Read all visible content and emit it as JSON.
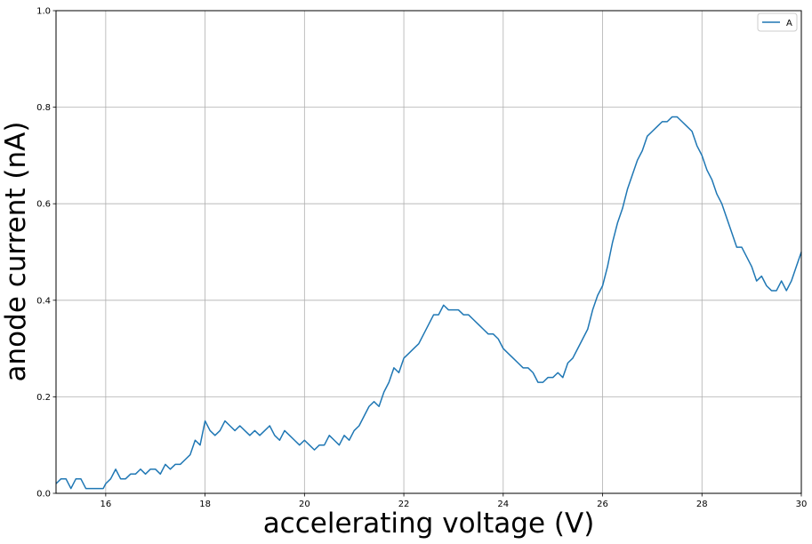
{
  "chart_data": {
    "type": "line",
    "title": "",
    "xlabel": "accelerating voltage (V)",
    "ylabel": "anode current (nA)",
    "xlim": [
      15,
      30
    ],
    "ylim": [
      0.0,
      1.0
    ],
    "x_ticks": [
      16,
      18,
      20,
      22,
      24,
      26,
      28,
      30
    ],
    "x_tick_labels": [
      "16",
      "18",
      "20",
      "22",
      "24",
      "26",
      "28",
      "30"
    ],
    "y_ticks": [
      0.0,
      0.2,
      0.4,
      0.6,
      0.8,
      1.0
    ],
    "y_tick_labels": [
      "0.0",
      "0.2",
      "0.4",
      "0.6",
      "0.8",
      "1.0"
    ],
    "grid": true,
    "legend_position": "top-right",
    "series": [
      {
        "name": "A",
        "color": "#1f77b4",
        "points": [
          [
            15.0,
            0.02
          ],
          [
            15.1,
            0.03
          ],
          [
            15.2,
            0.03
          ],
          [
            15.3,
            0.01
          ],
          [
            15.4,
            0.03
          ],
          [
            15.5,
            0.03
          ],
          [
            15.6,
            0.01
          ],
          [
            15.8,
            0.01
          ],
          [
            15.95,
            0.01
          ],
          [
            16.0,
            0.02
          ],
          [
            16.1,
            0.03
          ],
          [
            16.2,
            0.05
          ],
          [
            16.3,
            0.03
          ],
          [
            16.4,
            0.03
          ],
          [
            16.5,
            0.04
          ],
          [
            16.6,
            0.04
          ],
          [
            16.7,
            0.05
          ],
          [
            16.8,
            0.04
          ],
          [
            16.9,
            0.05
          ],
          [
            17.0,
            0.05
          ],
          [
            17.1,
            0.04
          ],
          [
            17.2,
            0.06
          ],
          [
            17.3,
            0.05
          ],
          [
            17.4,
            0.06
          ],
          [
            17.5,
            0.06
          ],
          [
            17.6,
            0.07
          ],
          [
            17.7,
            0.08
          ],
          [
            17.8,
            0.11
          ],
          [
            17.9,
            0.1
          ],
          [
            18.0,
            0.15
          ],
          [
            18.1,
            0.13
          ],
          [
            18.2,
            0.12
          ],
          [
            18.3,
            0.13
          ],
          [
            18.4,
            0.15
          ],
          [
            18.5,
            0.14
          ],
          [
            18.6,
            0.13
          ],
          [
            18.7,
            0.14
          ],
          [
            18.8,
            0.13
          ],
          [
            18.9,
            0.12
          ],
          [
            19.0,
            0.13
          ],
          [
            19.1,
            0.12
          ],
          [
            19.2,
            0.13
          ],
          [
            19.3,
            0.14
          ],
          [
            19.4,
            0.12
          ],
          [
            19.5,
            0.11
          ],
          [
            19.6,
            0.13
          ],
          [
            19.7,
            0.12
          ],
          [
            19.8,
            0.11
          ],
          [
            19.9,
            0.1
          ],
          [
            20.0,
            0.11
          ],
          [
            20.1,
            0.1
          ],
          [
            20.2,
            0.09
          ],
          [
            20.3,
            0.1
          ],
          [
            20.4,
            0.1
          ],
          [
            20.5,
            0.12
          ],
          [
            20.6,
            0.11
          ],
          [
            20.7,
            0.1
          ],
          [
            20.8,
            0.12
          ],
          [
            20.9,
            0.11
          ],
          [
            21.0,
            0.13
          ],
          [
            21.1,
            0.14
          ],
          [
            21.2,
            0.16
          ],
          [
            21.3,
            0.18
          ],
          [
            21.4,
            0.19
          ],
          [
            21.5,
            0.18
          ],
          [
            21.6,
            0.21
          ],
          [
            21.7,
            0.23
          ],
          [
            21.8,
            0.26
          ],
          [
            21.9,
            0.25
          ],
          [
            22.0,
            0.28
          ],
          [
            22.1,
            0.29
          ],
          [
            22.2,
            0.3
          ],
          [
            22.3,
            0.31
          ],
          [
            22.4,
            0.33
          ],
          [
            22.5,
            0.35
          ],
          [
            22.6,
            0.37
          ],
          [
            22.7,
            0.37
          ],
          [
            22.8,
            0.39
          ],
          [
            22.9,
            0.38
          ],
          [
            23.0,
            0.38
          ],
          [
            23.1,
            0.38
          ],
          [
            23.2,
            0.37
          ],
          [
            23.3,
            0.37
          ],
          [
            23.4,
            0.36
          ],
          [
            23.5,
            0.35
          ],
          [
            23.6,
            0.34
          ],
          [
            23.7,
            0.33
          ],
          [
            23.8,
            0.33
          ],
          [
            23.9,
            0.32
          ],
          [
            24.0,
            0.3
          ],
          [
            24.1,
            0.29
          ],
          [
            24.2,
            0.28
          ],
          [
            24.3,
            0.27
          ],
          [
            24.4,
            0.26
          ],
          [
            24.5,
            0.26
          ],
          [
            24.6,
            0.25
          ],
          [
            24.7,
            0.23
          ],
          [
            24.8,
            0.23
          ],
          [
            24.9,
            0.24
          ],
          [
            25.0,
            0.24
          ],
          [
            25.1,
            0.25
          ],
          [
            25.2,
            0.24
          ],
          [
            25.3,
            0.27
          ],
          [
            25.4,
            0.28
          ],
          [
            25.5,
            0.3
          ],
          [
            25.6,
            0.32
          ],
          [
            25.7,
            0.34
          ],
          [
            25.8,
            0.38
          ],
          [
            25.9,
            0.41
          ],
          [
            26.0,
            0.43
          ],
          [
            26.1,
            0.47
          ],
          [
            26.2,
            0.52
          ],
          [
            26.3,
            0.56
          ],
          [
            26.4,
            0.59
          ],
          [
            26.5,
            0.63
          ],
          [
            26.6,
            0.66
          ],
          [
            26.7,
            0.69
          ],
          [
            26.8,
            0.71
          ],
          [
            26.9,
            0.74
          ],
          [
            27.0,
            0.75
          ],
          [
            27.1,
            0.76
          ],
          [
            27.2,
            0.77
          ],
          [
            27.3,
            0.77
          ],
          [
            27.4,
            0.78
          ],
          [
            27.5,
            0.78
          ],
          [
            27.6,
            0.77
          ],
          [
            27.7,
            0.76
          ],
          [
            27.8,
            0.75
          ],
          [
            27.9,
            0.72
          ],
          [
            28.0,
            0.7
          ],
          [
            28.1,
            0.67
          ],
          [
            28.2,
            0.65
          ],
          [
            28.3,
            0.62
          ],
          [
            28.4,
            0.6
          ],
          [
            28.5,
            0.57
          ],
          [
            28.6,
            0.54
          ],
          [
            28.7,
            0.51
          ],
          [
            28.8,
            0.51
          ],
          [
            28.9,
            0.49
          ],
          [
            29.0,
            0.47
          ],
          [
            29.1,
            0.44
          ],
          [
            29.2,
            0.45
          ],
          [
            29.3,
            0.43
          ],
          [
            29.4,
            0.42
          ],
          [
            29.5,
            0.42
          ],
          [
            29.6,
            0.44
          ],
          [
            29.7,
            0.42
          ],
          [
            29.8,
            0.44
          ],
          [
            29.9,
            0.47
          ],
          [
            30.0,
            0.5
          ]
        ]
      }
    ]
  }
}
